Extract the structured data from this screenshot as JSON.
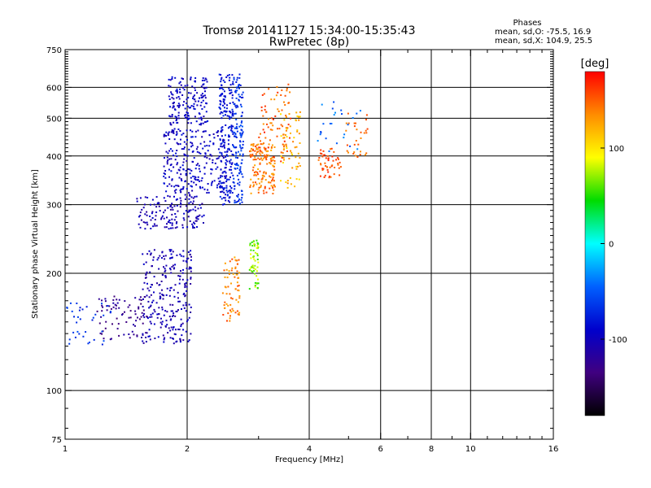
{
  "chart_data": {
    "type": "scatter",
    "title": "Tromsø 20141127 15:34:00-15:35:43",
    "subtitle": "RwPretec (8p)",
    "xlabel": "Frequency [MHz]",
    "ylabel": "Stationary phase Virtual Height [km]",
    "xscale": "log",
    "yscale": "log",
    "xlim": [
      1,
      16
    ],
    "ylim": [
      75,
      750
    ],
    "x_ticks": [
      1,
      2,
      4,
      6,
      8,
      10,
      16
    ],
    "y_ticks": [
      75,
      100,
      200,
      300,
      400,
      500,
      600,
      750
    ],
    "x_grid": [
      2,
      4,
      6,
      8,
      10
    ],
    "y_grid": [
      100,
      200,
      300,
      400,
      500,
      600
    ],
    "grid": true,
    "stats": {
      "title": "Phases",
      "line_o": "mean, sd,O: -75.5, 16.9",
      "line_x": "mean, sd,X: 104.9, 25.5"
    },
    "colorbar": {
      "label": "[deg]",
      "range": [
        -180,
        180
      ],
      "ticks": [
        100,
        0,
        -100
      ],
      "colors": [
        "#ff0000",
        "#ff8c00",
        "#ffff00",
        "#00dc00",
        "#00ffff",
        "#0060ff",
        "#0000cc",
        "#400080",
        "#000000"
      ]
    },
    "clusters": [
      {
        "f": [
          1.55,
          2.05
        ],
        "h": [
          132,
          230
        ],
        "phase": [
          -120,
          -90
        ],
        "n": 260
      },
      {
        "f": [
          1.2,
          1.6
        ],
        "h": [
          135,
          175
        ],
        "phase": [
          -140,
          -110
        ],
        "n": 80
      },
      {
        "f": [
          1.0,
          1.3
        ],
        "h": [
          128,
          170
        ],
        "phase": [
          -80,
          -50
        ],
        "n": 35
      },
      {
        "f": [
          1.5,
          2.2
        ],
        "h": [
          260,
          320
        ],
        "phase": [
          -120,
          -90
        ],
        "n": 150
      },
      {
        "f": [
          1.75,
          2.5
        ],
        "h": [
          320,
          470
        ],
        "phase": [
          -110,
          -80
        ],
        "n": 260
      },
      {
        "f": [
          1.8,
          2.25
        ],
        "h": [
          480,
          640
        ],
        "phase": [
          -110,
          -80
        ],
        "n": 160
      },
      {
        "f": [
          2.4,
          2.6
        ],
        "h": [
          300,
          650
        ],
        "phase": [
          -95,
          -70
        ],
        "n": 200
      },
      {
        "f": [
          2.6,
          2.75
        ],
        "h": [
          300,
          650
        ],
        "phase": [
          -80,
          -50
        ],
        "n": 140
      },
      {
        "f": [
          2.45,
          2.7
        ],
        "h": [
          150,
          220
        ],
        "phase": [
          120,
          160
        ],
        "n": 70
      },
      {
        "f": [
          2.85,
          3.0
        ],
        "h": [
          180,
          245
        ],
        "phase": [
          50,
          90
        ],
        "n": 60
      },
      {
        "f": [
          2.85,
          3.3
        ],
        "h": [
          320,
          430
        ],
        "phase": [
          120,
          160
        ],
        "n": 140
      },
      {
        "f": [
          3.0,
          3.6
        ],
        "h": [
          380,
          620
        ],
        "phase": [
          130,
          170
        ],
        "n": 90
      },
      {
        "f": [
          3.4,
          3.8
        ],
        "h": [
          330,
          520
        ],
        "phase": [
          100,
          140
        ],
        "n": 60
      },
      {
        "f": [
          4.2,
          4.8
        ],
        "h": [
          350,
          420
        ],
        "phase": [
          140,
          170
        ],
        "n": 50
      },
      {
        "f": [
          4.8,
          5.6
        ],
        "h": [
          390,
          520
        ],
        "phase": [
          130,
          160
        ],
        "n": 30
      },
      {
        "f": [
          4.2,
          5.4
        ],
        "h": [
          400,
          550
        ],
        "phase": [
          -60,
          -30
        ],
        "n": 25
      }
    ]
  }
}
